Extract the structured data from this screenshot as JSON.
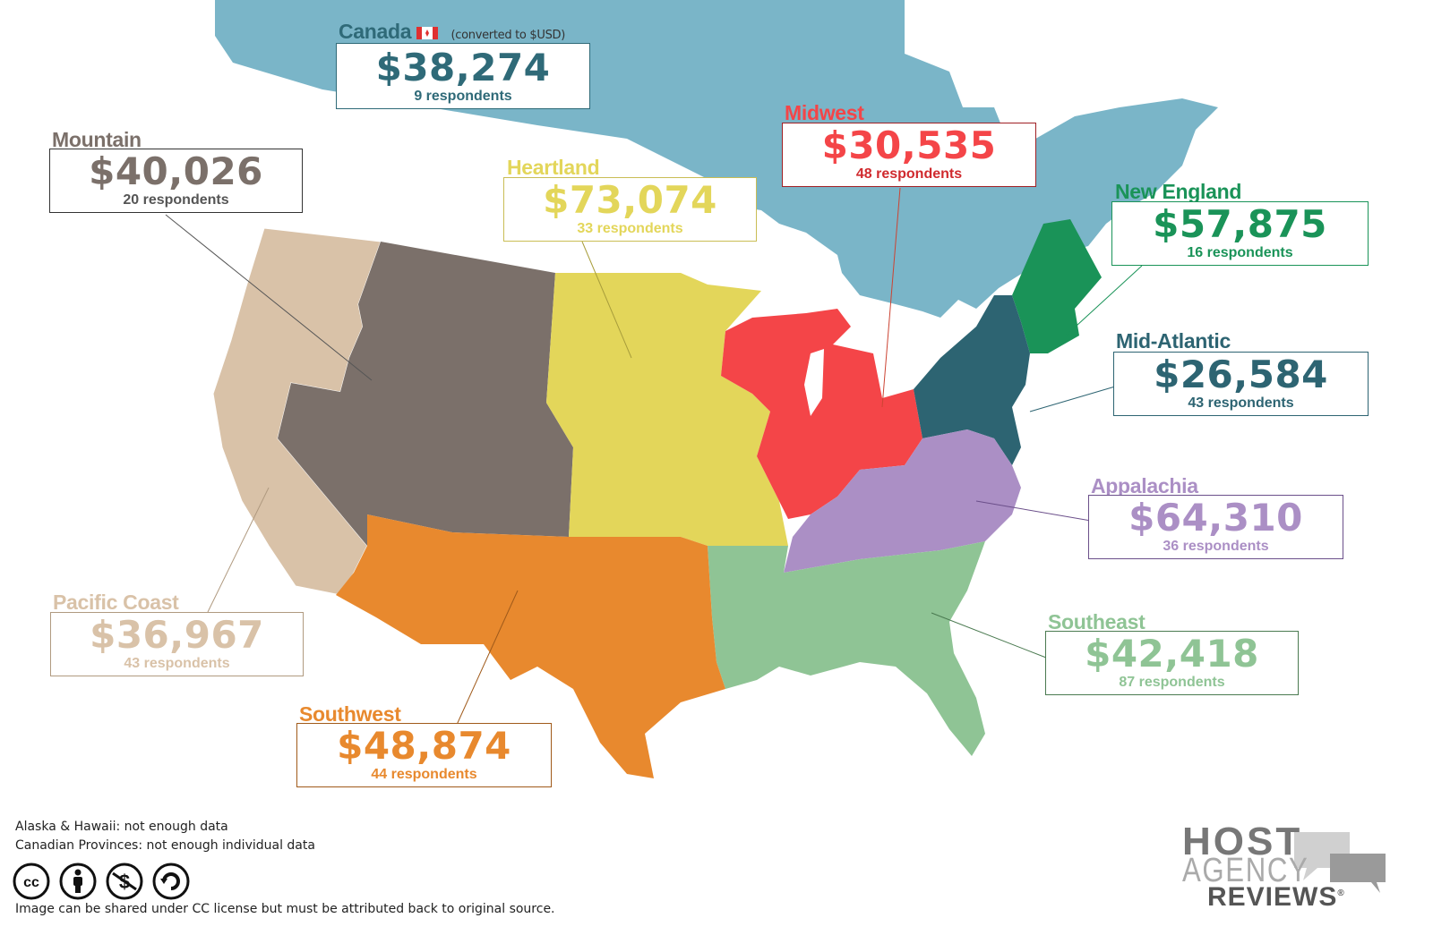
{
  "regions": {
    "canada": {
      "name": "Canada",
      "note": "(converted to $USD)",
      "amount": "$38,274",
      "respondents": "9 respondents",
      "color": "#2f6a78",
      "fill": "#7ab5c8"
    },
    "mountain": {
      "name": "Mountain",
      "amount": "$40,026",
      "respondents": "20 respondents",
      "color": "#7b706a",
      "fill": "#7b706a"
    },
    "heartland": {
      "name": "Heartland",
      "amount": "$73,074",
      "respondents": "33 respondents",
      "color": "#e3d65a",
      "fill": "#e3d65a"
    },
    "midwest": {
      "name": "Midwest",
      "amount": "$30,535",
      "respondents": "48 respondents",
      "color": "#f44548",
      "fill": "#f44548"
    },
    "new_england": {
      "name": "New England",
      "amount": "$57,875",
      "respondents": "16 respondents",
      "color": "#1a9358",
      "fill": "#1a9358"
    },
    "mid_atlantic": {
      "name": "Mid-Atlantic",
      "amount": "$26,584",
      "respondents": "43 respondents",
      "color": "#2d6472",
      "fill": "#2d6472"
    },
    "appalachia": {
      "name": "Appalachia",
      "amount": "$64,310",
      "respondents": "36 respondents",
      "color": "#ab8fc5",
      "fill": "#ab8fc5"
    },
    "southeast": {
      "name": "Southeast",
      "amount": "$42,418",
      "respondents": "87 respondents",
      "color": "#8fc495",
      "fill": "#8fc495"
    },
    "pacific": {
      "name": "Pacific Coast",
      "amount": "$36,967",
      "respondents": "43 respondents",
      "color": "#d9c2a8",
      "fill": "#d9c2a8"
    },
    "southwest": {
      "name": "Southwest",
      "amount": "$48,874",
      "respondents": "44 respondents",
      "color": "#e8892e",
      "fill": "#e8892e"
    }
  },
  "notes": {
    "line1": "Alaska & Hawaii: not enough data",
    "line2": "Canadian Provinces: not enough individual data",
    "license": "Image can be shared under CC license but must be attributed back to original source."
  },
  "license_icons": [
    "cc-icon",
    "attribution-icon",
    "noncommercial-icon",
    "sharealike-icon"
  ],
  "logo": {
    "line1": "HOST",
    "line2": "AGENCY",
    "line3": "REVIEWS",
    "mark": "®"
  }
}
